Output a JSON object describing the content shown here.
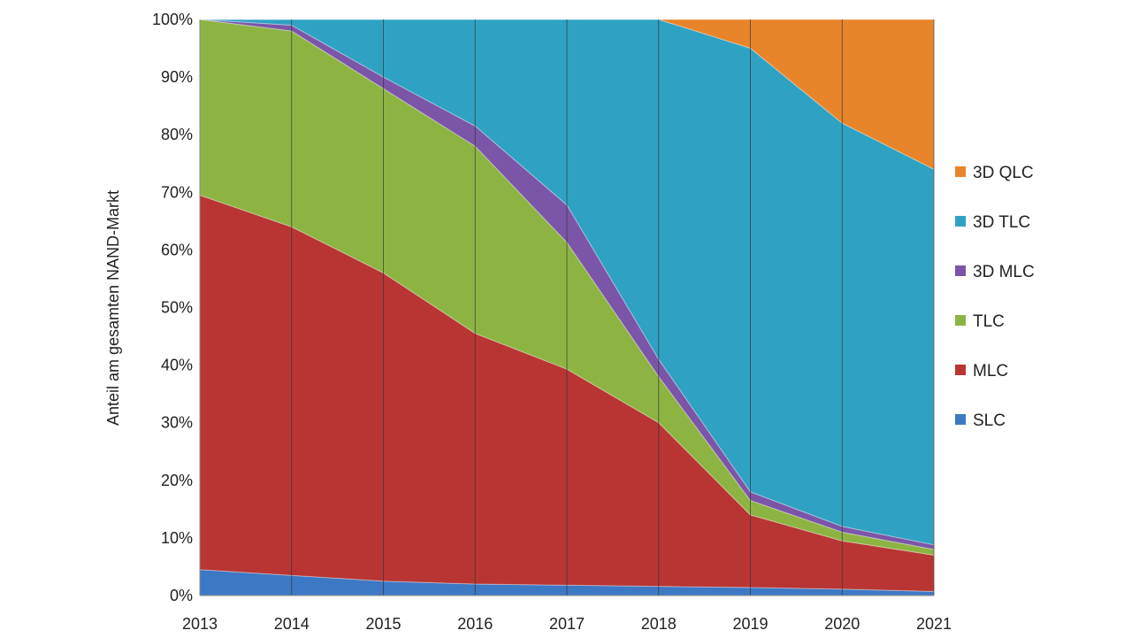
{
  "chart_data": {
    "type": "area",
    "stacked": true,
    "x": [
      2013,
      2014,
      2015,
      2016,
      2017,
      2018,
      2019,
      2020,
      2021
    ],
    "x_labels": [
      "2013",
      "2014",
      "2015",
      "2016",
      "2017",
      "2018",
      "2019",
      "2020",
      "2021"
    ],
    "ylabel": "Anteil am gesamten NAND-Markt",
    "ylim": [
      0,
      100
    ],
    "y_ticks": [
      0,
      10,
      20,
      30,
      40,
      50,
      60,
      70,
      80,
      90,
      100
    ],
    "y_tick_labels": [
      "0%",
      "10%",
      "20%",
      "30%",
      "40%",
      "50%",
      "60%",
      "70%",
      "80%",
      "90%",
      "100%"
    ],
    "grid": "vertical",
    "legend_position": "right",
    "series": [
      {
        "name": "SLC",
        "color": "#3d78c4",
        "values": [
          4.5,
          3.5,
          2.5,
          2.0,
          1.8,
          1.6,
          1.4,
          1.1,
          0.7
        ]
      },
      {
        "name": "MLC",
        "color": "#b83533",
        "values": [
          65.0,
          60.5,
          53.5,
          43.5,
          37.5,
          28.4,
          12.6,
          8.4,
          6.3
        ]
      },
      {
        "name": "TLC",
        "color": "#8db443",
        "values": [
          30.5,
          34.0,
          32.0,
          32.5,
          22.0,
          8.0,
          2.5,
          1.5,
          1.0
        ]
      },
      {
        "name": "3D MLC",
        "color": "#7b55a8",
        "values": [
          0.0,
          1.0,
          2.0,
          3.5,
          6.5,
          3.0,
          1.5,
          1.0,
          0.8
        ]
      },
      {
        "name": "3D TLC",
        "color": "#2fa2c3",
        "values": [
          0.0,
          1.0,
          10.0,
          18.5,
          32.2,
          59.0,
          77.0,
          70.0,
          65.2
        ]
      },
      {
        "name": "3D QLC",
        "color": "#e8852a",
        "values": [
          0.0,
          0.0,
          0.0,
          0.0,
          0.0,
          0.0,
          5.0,
          18.0,
          26.0
        ]
      }
    ],
    "legend_order": [
      "3D QLC",
      "3D TLC",
      "3D MLC",
      "TLC",
      "MLC",
      "SLC"
    ]
  }
}
